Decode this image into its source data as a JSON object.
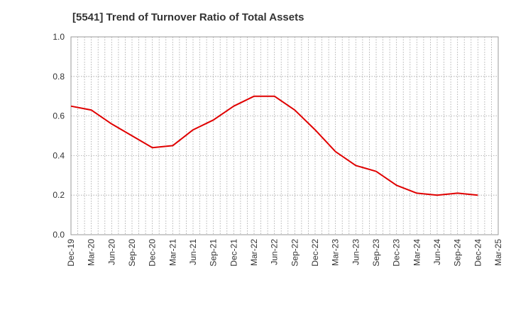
{
  "chart_data": {
    "type": "line",
    "title": "[5541]  Trend of Turnover Ratio of Total Assets",
    "xlabel": "",
    "ylabel": "",
    "x_tick_labels": [
      "Dec-19",
      "Mar-20",
      "Jun-20",
      "Sep-20",
      "Dec-20",
      "Mar-21",
      "Jun-21",
      "Sep-21",
      "Dec-21",
      "Mar-22",
      "Jun-22",
      "Sep-22",
      "Dec-22",
      "Mar-23",
      "Jun-23",
      "Sep-23",
      "Dec-23",
      "Mar-24",
      "Jun-24",
      "Sep-24",
      "Dec-24",
      "Mar-25"
    ],
    "y_tick_labels": [
      "0.0",
      "0.2",
      "0.4",
      "0.6",
      "0.8",
      "1.0"
    ],
    "ylim": [
      0,
      1.0
    ],
    "grid": true,
    "line_color": "#e00000",
    "series": [
      {
        "x": [
          "Dec-19",
          "Mar-20",
          "Jun-20",
          "Sep-20",
          "Dec-20",
          "Mar-21",
          "Jun-21",
          "Sep-21",
          "Dec-21",
          "Mar-22",
          "Jun-22",
          "Sep-22",
          "Dec-22",
          "Mar-23",
          "Jun-23",
          "Sep-23",
          "Dec-23",
          "Mar-24",
          "Jun-24",
          "Sep-24",
          "Dec-24"
        ],
        "values": [
          0.65,
          0.63,
          0.56,
          0.5,
          0.44,
          0.45,
          0.53,
          0.58,
          0.65,
          0.7,
          0.7,
          0.63,
          0.53,
          0.42,
          0.35,
          0.32,
          0.25,
          0.21,
          0.2,
          0.21,
          0.2
        ]
      }
    ]
  }
}
